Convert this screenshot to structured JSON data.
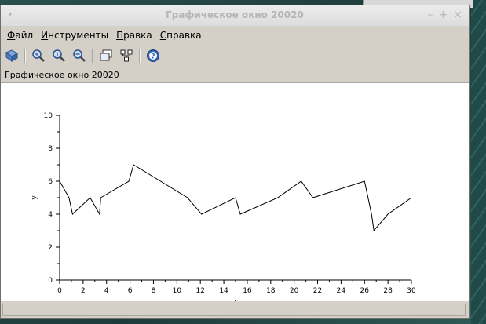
{
  "window": {
    "title": "Графическое окно 20020",
    "menu_glyph": "▾",
    "controls": [
      "–",
      "+",
      "×"
    ]
  },
  "menu": {
    "items": [
      "Файл",
      "Инструменты",
      "Правка",
      "Справка"
    ]
  },
  "toolbar": {
    "buttons": [
      "rotate-icon",
      "zoom-icon",
      "zoom-reset-icon",
      "zoom-out-icon",
      "datatip-icon",
      "editor-icon",
      "help-icon"
    ]
  },
  "info": {
    "label": "Графическое окно 20020"
  },
  "chart_data": {
    "type": "line",
    "xlabel": "t",
    "ylabel": "y",
    "xlim": [
      0,
      30
    ],
    "ylim": [
      0,
      10
    ],
    "xticks": [
      0,
      2,
      4,
      6,
      8,
      10,
      12,
      14,
      16,
      18,
      20,
      22,
      24,
      26,
      28,
      30
    ],
    "yticks": [
      0,
      2,
      4,
      6,
      8,
      10
    ],
    "x": [
      0,
      0.8,
      1.1,
      2.6,
      3.4,
      3.5,
      5.9,
      6.3,
      10.9,
      12.1,
      15.0,
      15.4,
      18.6,
      20.6,
      21.6,
      26.0,
      26.6,
      26.8,
      28.0,
      30.0
    ],
    "y": [
      6.0,
      5.0,
      4.0,
      5.0,
      4.0,
      5.0,
      6.0,
      7.0,
      5.0,
      4.0,
      5.0,
      4.0,
      5.0,
      6.0,
      5.0,
      6.0,
      4.0,
      3.0,
      4.0,
      5.0
    ],
    "line_color": "#000000",
    "grid": false
  }
}
